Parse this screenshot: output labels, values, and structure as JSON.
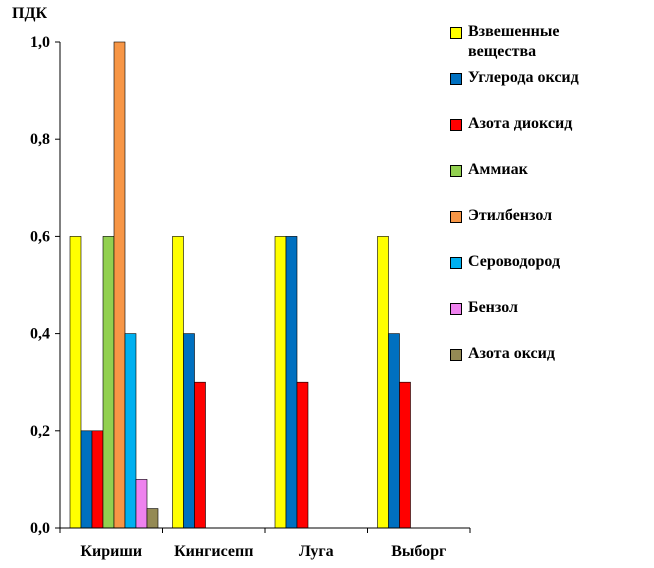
{
  "chart_data": {
    "type": "bar",
    "ylabel": "ПДК",
    "ylim": [
      0,
      1.0
    ],
    "yticks": [
      "0,0",
      "0,2",
      "0,4",
      "0,6",
      "0,8",
      "1,0"
    ],
    "categories": [
      "Кириши",
      "Кингисепп",
      "Луга",
      "Выборг"
    ],
    "series": [
      {
        "name": "Взвешенные вещества",
        "color": "#ffff00",
        "values": [
          0.6,
          0.6,
          0.6,
          0.6
        ]
      },
      {
        "name": "Углерода оксид",
        "color": "#0070c0",
        "values": [
          0.2,
          0.4,
          0.6,
          0.4
        ]
      },
      {
        "name": "Азота диоксид",
        "color": "#ff0000",
        "values": [
          0.2,
          0.3,
          0.3,
          0.3
        ]
      },
      {
        "name": "Аммиак",
        "color": "#92d050",
        "values": [
          0.6,
          null,
          null,
          null
        ]
      },
      {
        "name": "Этилбензол",
        "color": "#f79646",
        "values": [
          1.0,
          null,
          null,
          null
        ]
      },
      {
        "name": "Сероводород",
        "color": "#00b0f0",
        "values": [
          0.4,
          null,
          null,
          null
        ]
      },
      {
        "name": "Бензол",
        "color": "#ee82ee",
        "values": [
          0.1,
          null,
          null,
          null
        ]
      },
      {
        "name": "Азота оксид",
        "color": "#948a54",
        "values": [
          0.04,
          null,
          null,
          null
        ]
      }
    ],
    "grid": false,
    "legend_position": "right"
  }
}
